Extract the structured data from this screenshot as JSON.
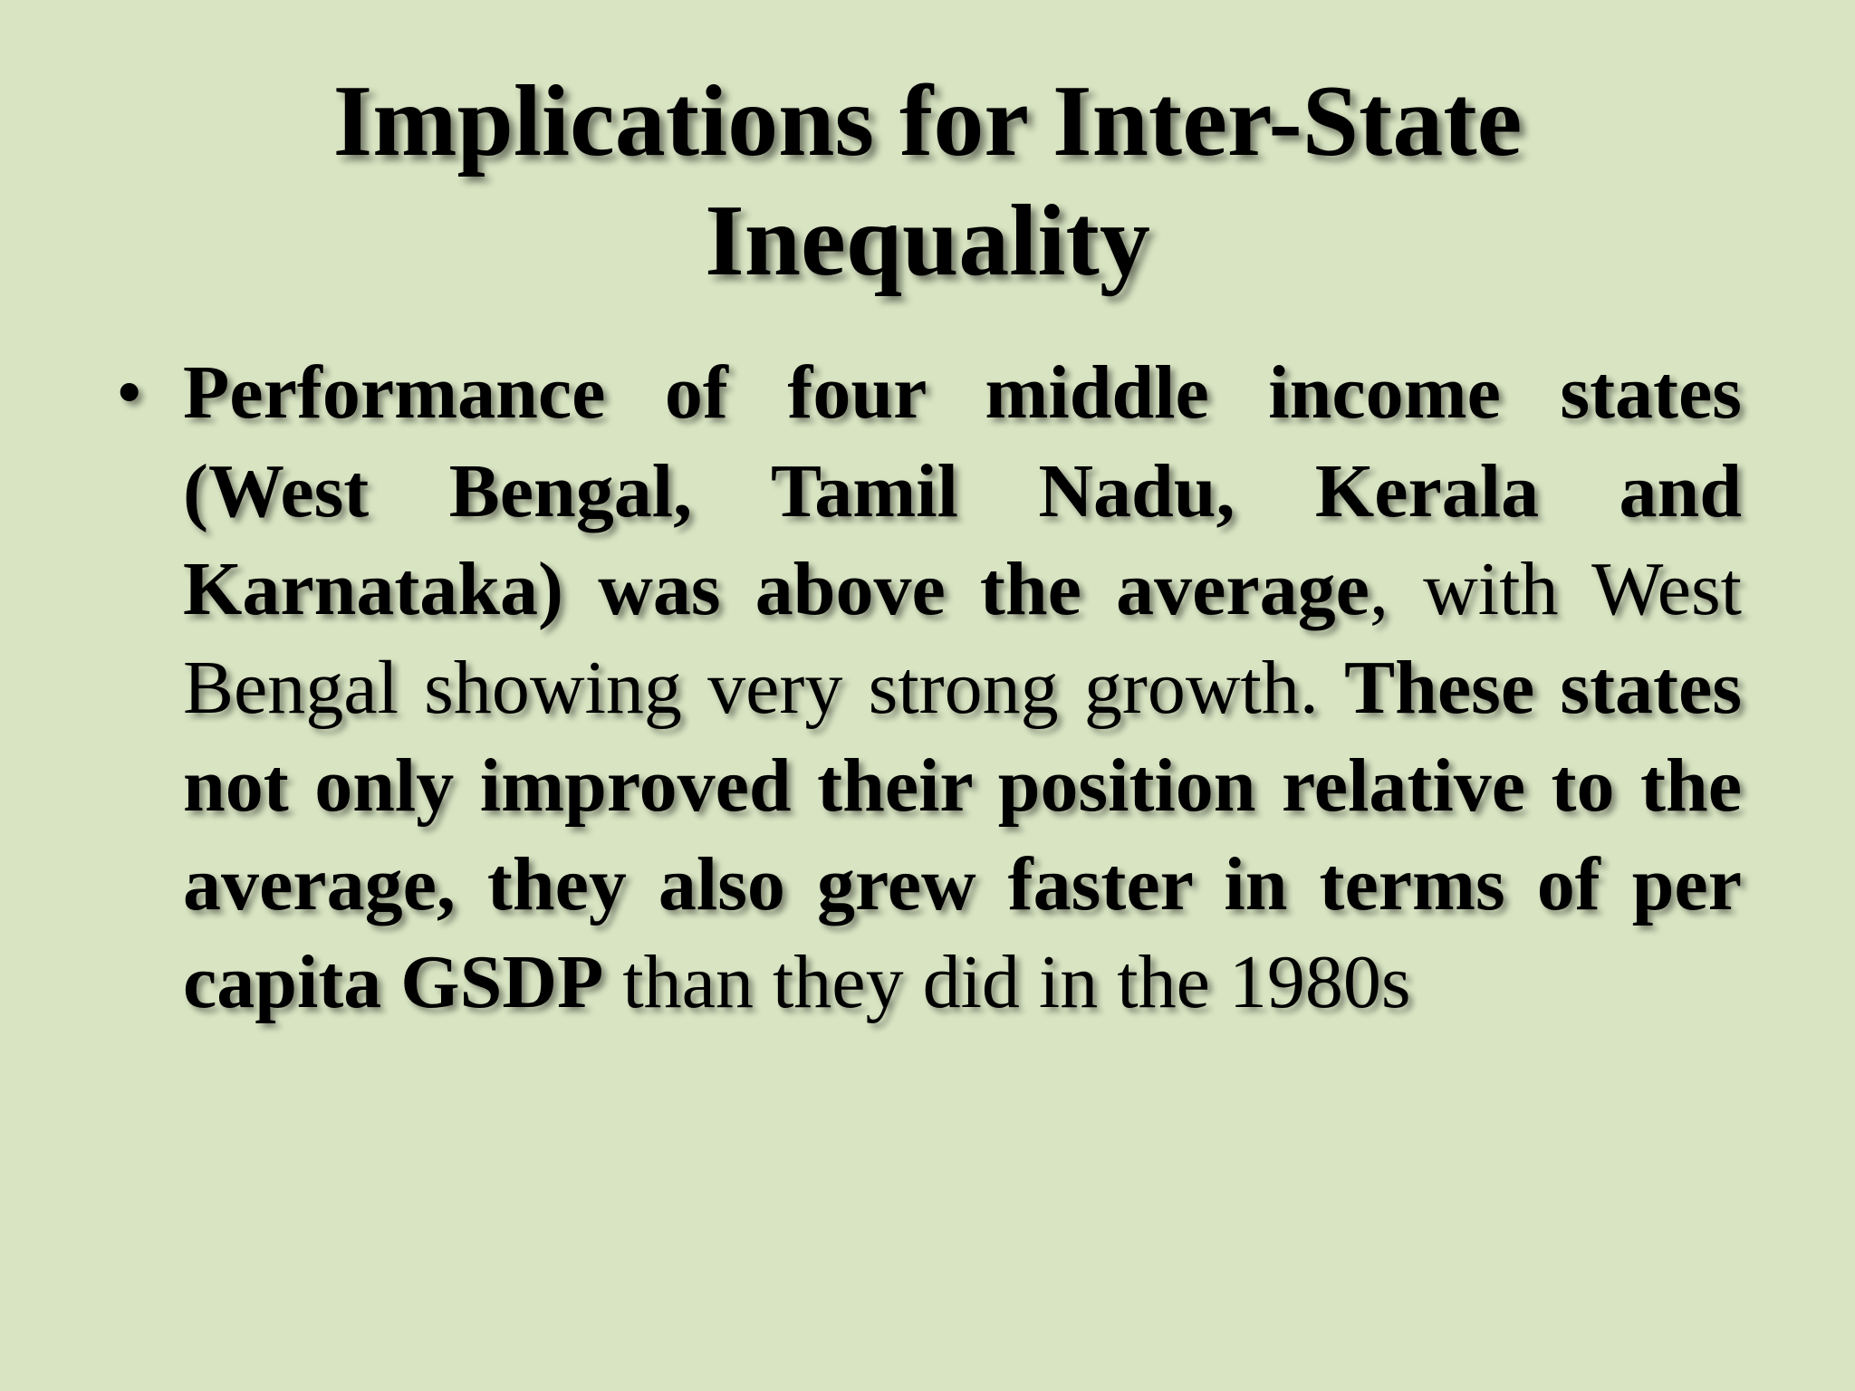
{
  "slide": {
    "title_line1": "Implications for Inter-State",
    "title_line2": "Inequality",
    "bullet": {
      "mark": "•",
      "part1_bold": "Performance of four middle income states (West Bengal, Tamil Nadu, Kerala and Karnataka) was above the average",
      "part2_normal": ", with West Bengal showing very strong growth. ",
      "part3_bold": "These states not only improved their position relative to the average, they also grew faster in terms of per capita GSDP",
      "part4_normal": " than they did in the 1980s"
    }
  }
}
